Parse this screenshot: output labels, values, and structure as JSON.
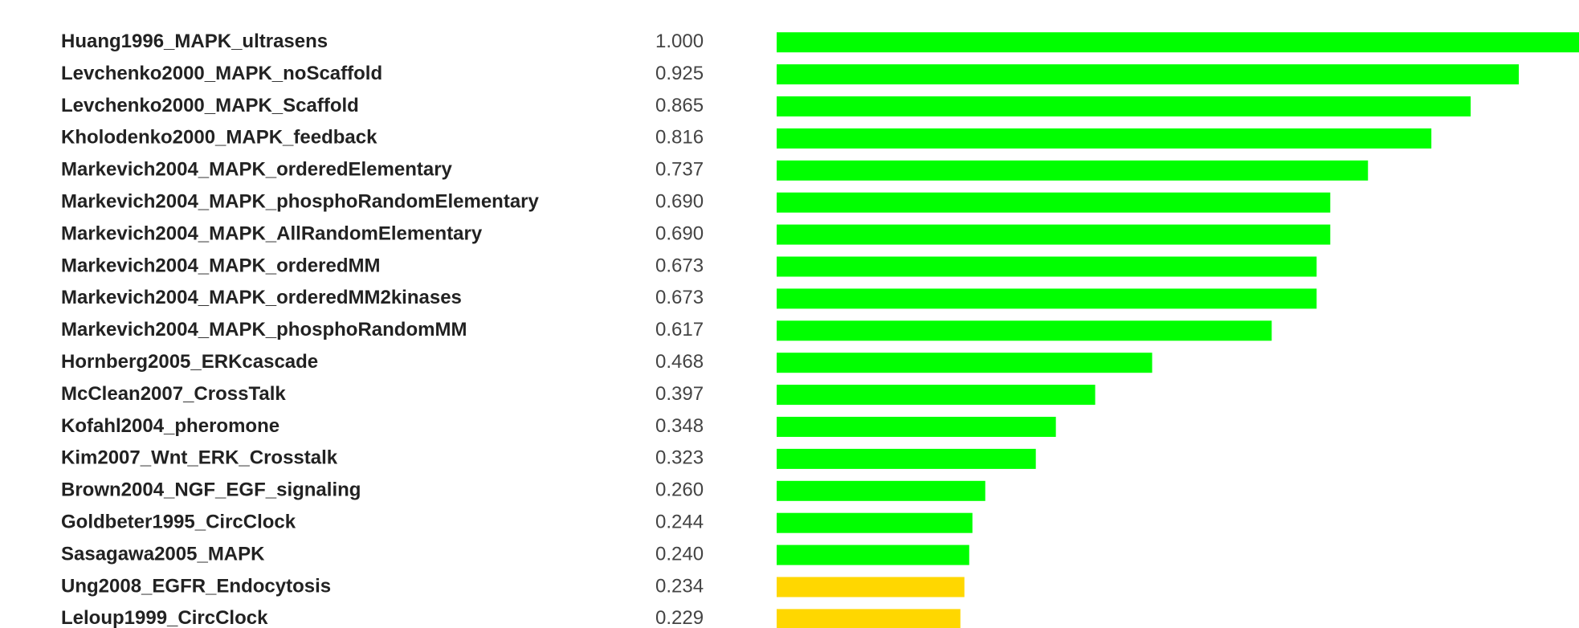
{
  "chart_data": {
    "type": "bar",
    "orientation": "horizontal",
    "categories": [
      "Huang1996_MAPK_ultrasens",
      "Levchenko2000_MAPK_noScaffold",
      "Levchenko2000_MAPK_Scaffold",
      "Kholodenko2000_MAPK_feedback",
      "Markevich2004_MAPK_orderedElementary",
      "Markevich2004_MAPK_phosphoRandomElementary",
      "Markevich2004_MAPK_AllRandomElementary",
      "Markevich2004_MAPK_orderedMM",
      "Markevich2004_MAPK_orderedMM2kinases",
      "Markevich2004_MAPK_phosphoRandomMM",
      "Hornberg2005_ERKcascade",
      "McClean2007_CrossTalk",
      "Kofahl2004_pheromone",
      "Kim2007_Wnt_ERK_Crosstalk",
      "Brown2004_NGF_EGF_signaling",
      "Goldbeter1995_CircClock",
      "Sasagawa2005_MAPK",
      "Ung2008_EGFR_Endocytosis",
      "Leloup1999_CircClock"
    ],
    "values": [
      1.0,
      0.925,
      0.865,
      0.816,
      0.737,
      0.69,
      0.69,
      0.673,
      0.673,
      0.617,
      0.468,
      0.397,
      0.348,
      0.323,
      0.26,
      0.244,
      0.24,
      0.234,
      0.229
    ],
    "value_labels": [
      "1.000",
      "0.925",
      "0.865",
      "0.816",
      "0.737",
      "0.690",
      "0.690",
      "0.673",
      "0.673",
      "0.617",
      "0.468",
      "0.397",
      "0.348",
      "0.323",
      "0.260",
      "0.244",
      "0.240",
      "0.234",
      "0.229"
    ],
    "colors": [
      "#00ff00",
      "#00ff00",
      "#00ff00",
      "#00ff00",
      "#00ff00",
      "#00ff00",
      "#00ff00",
      "#00ff00",
      "#00ff00",
      "#00ff00",
      "#00ff00",
      "#00ff00",
      "#00ff00",
      "#00ff00",
      "#00ff00",
      "#00ff00",
      "#00ff00",
      "#ffd700",
      "#ffd700"
    ],
    "xlim": [
      0,
      1
    ]
  }
}
